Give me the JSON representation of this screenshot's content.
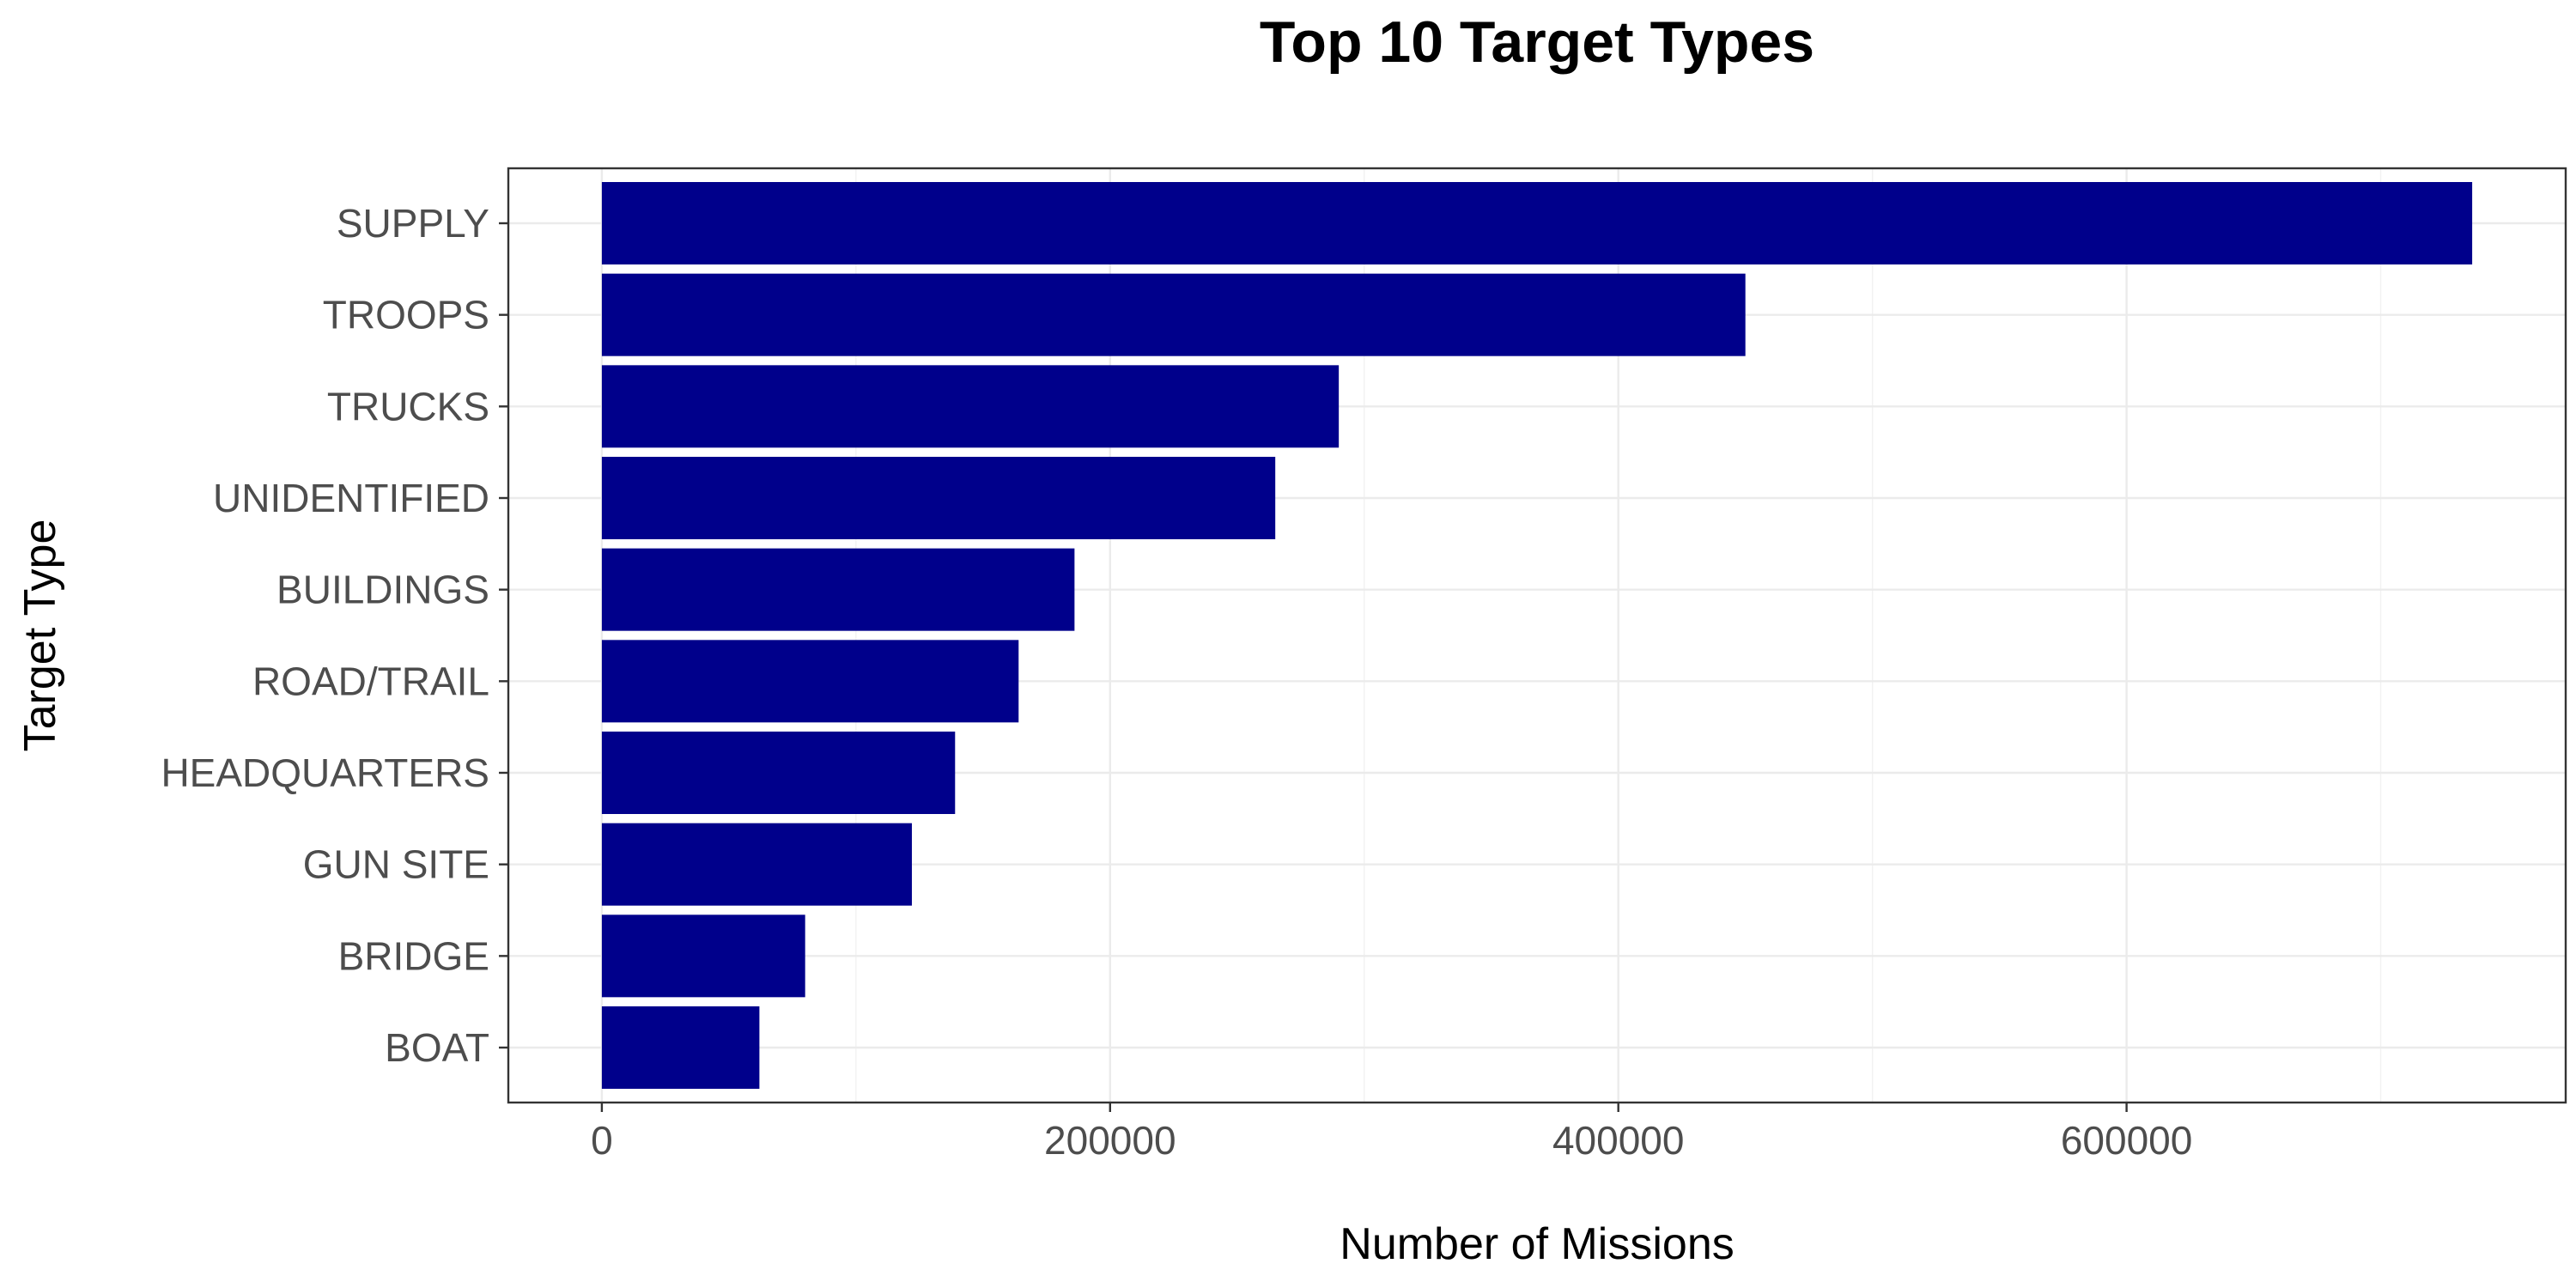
{
  "chart_data": {
    "type": "bar",
    "orientation": "horizontal",
    "title": "Top 10 Target Types",
    "xlabel": "Number of Missions",
    "ylabel": "Target Type",
    "categories": [
      "SUPPLY",
      "TROOPS",
      "TRUCKS",
      "UNIDENTIFIED",
      "BUILDINGS",
      "ROAD/TRAIL",
      "HEADQUARTERS",
      "GUN SITE",
      "BRIDGE",
      "BOAT"
    ],
    "values": [
      736000,
      450000,
      290000,
      265000,
      186000,
      164000,
      139000,
      122000,
      80000,
      62000
    ],
    "xlim": [
      -36800,
      772800
    ],
    "xticks": [
      0,
      200000,
      400000,
      600000
    ],
    "xtick_labels": [
      "0",
      "200000",
      "400000",
      "600000"
    ],
    "grid": true,
    "legend": "none",
    "bar_color": "#00008b"
  }
}
